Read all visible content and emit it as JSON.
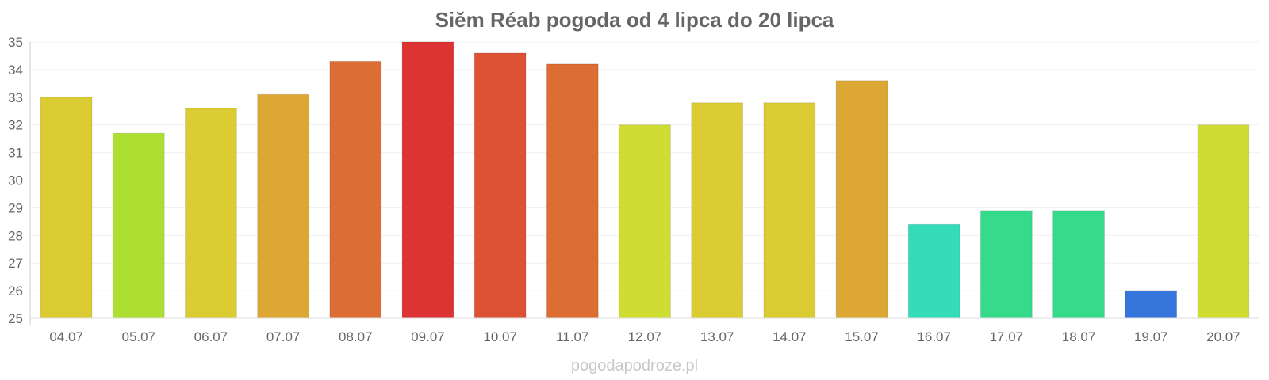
{
  "chart_data": {
    "type": "bar",
    "title": "Siĕm Réab pogoda od 4 lipca do 20 lipca",
    "xlabel": "",
    "ylabel": "",
    "categories": [
      "04.07",
      "05.07",
      "06.07",
      "07.07",
      "08.07",
      "09.07",
      "10.07",
      "11.07",
      "12.07",
      "13.07",
      "14.07",
      "15.07",
      "16.07",
      "17.07",
      "18.07",
      "19.07",
      "20.07"
    ],
    "values": [
      33.0,
      31.7,
      32.6,
      33.1,
      34.3,
      35.0,
      34.6,
      34.2,
      32.0,
      32.8,
      32.8,
      33.6,
      28.4,
      28.9,
      28.9,
      26.0,
      32.0
    ],
    "bar_colors": [
      "#dccc33",
      "#addf33",
      "#dccc33",
      "#dda733",
      "#dc6d33",
      "#dc3333",
      "#dc5233",
      "#dc6d33",
      "#cfdd33",
      "#dccc33",
      "#dccc33",
      "#dda733",
      "#35dcb9",
      "#35db8a",
      "#35db8a",
      "#3575dc",
      "#cfdd33"
    ],
    "ylim": [
      25,
      35
    ],
    "yticks": [
      25,
      26,
      27,
      28,
      29,
      30,
      31,
      32,
      33,
      34,
      35
    ],
    "grid": true,
    "legend": "none"
  },
  "watermark": "pogodapodroze.pl"
}
